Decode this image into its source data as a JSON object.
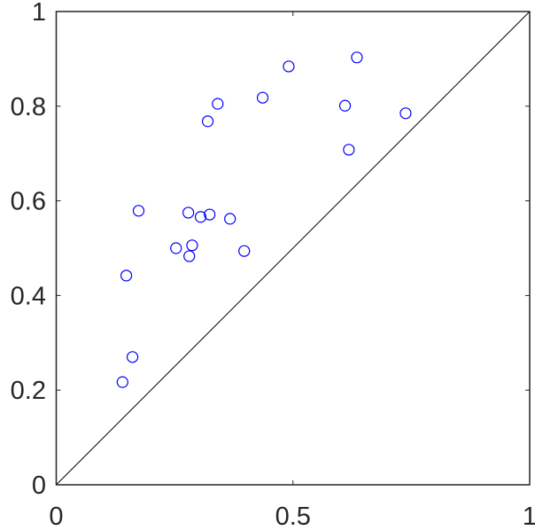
{
  "chart_data": {
    "type": "scatter",
    "title": "",
    "xlabel": "",
    "ylabel": "",
    "xlim": [
      0,
      1
    ],
    "ylim": [
      0,
      1
    ],
    "x_ticks": [
      "0",
      "0.5",
      "1"
    ],
    "x_tick_values": [
      0,
      0.5,
      1
    ],
    "y_ticks": [
      "0",
      "0.2",
      "0.4",
      "0.6",
      "0.8",
      "1"
    ],
    "y_tick_values": [
      0,
      0.2,
      0.4,
      0.6,
      0.8,
      1
    ],
    "grid": false,
    "box": true,
    "marker": "open-circle",
    "marker_color": "#0000ff",
    "reference_line": {
      "type": "y=x",
      "color": "#000000"
    },
    "series": [
      {
        "x": [
          0.635,
          0.491,
          0.436,
          0.341,
          0.61,
          0.738,
          0.32,
          0.618,
          0.174,
          0.279,
          0.324,
          0.305,
          0.367,
          0.253,
          0.287,
          0.281,
          0.397,
          0.148,
          0.161,
          0.14
        ],
        "y": [
          0.903,
          0.884,
          0.818,
          0.805,
          0.801,
          0.785,
          0.768,
          0.708,
          0.579,
          0.575,
          0.571,
          0.566,
          0.562,
          0.5,
          0.506,
          0.483,
          0.494,
          0.442,
          0.27,
          0.217
        ]
      }
    ]
  }
}
